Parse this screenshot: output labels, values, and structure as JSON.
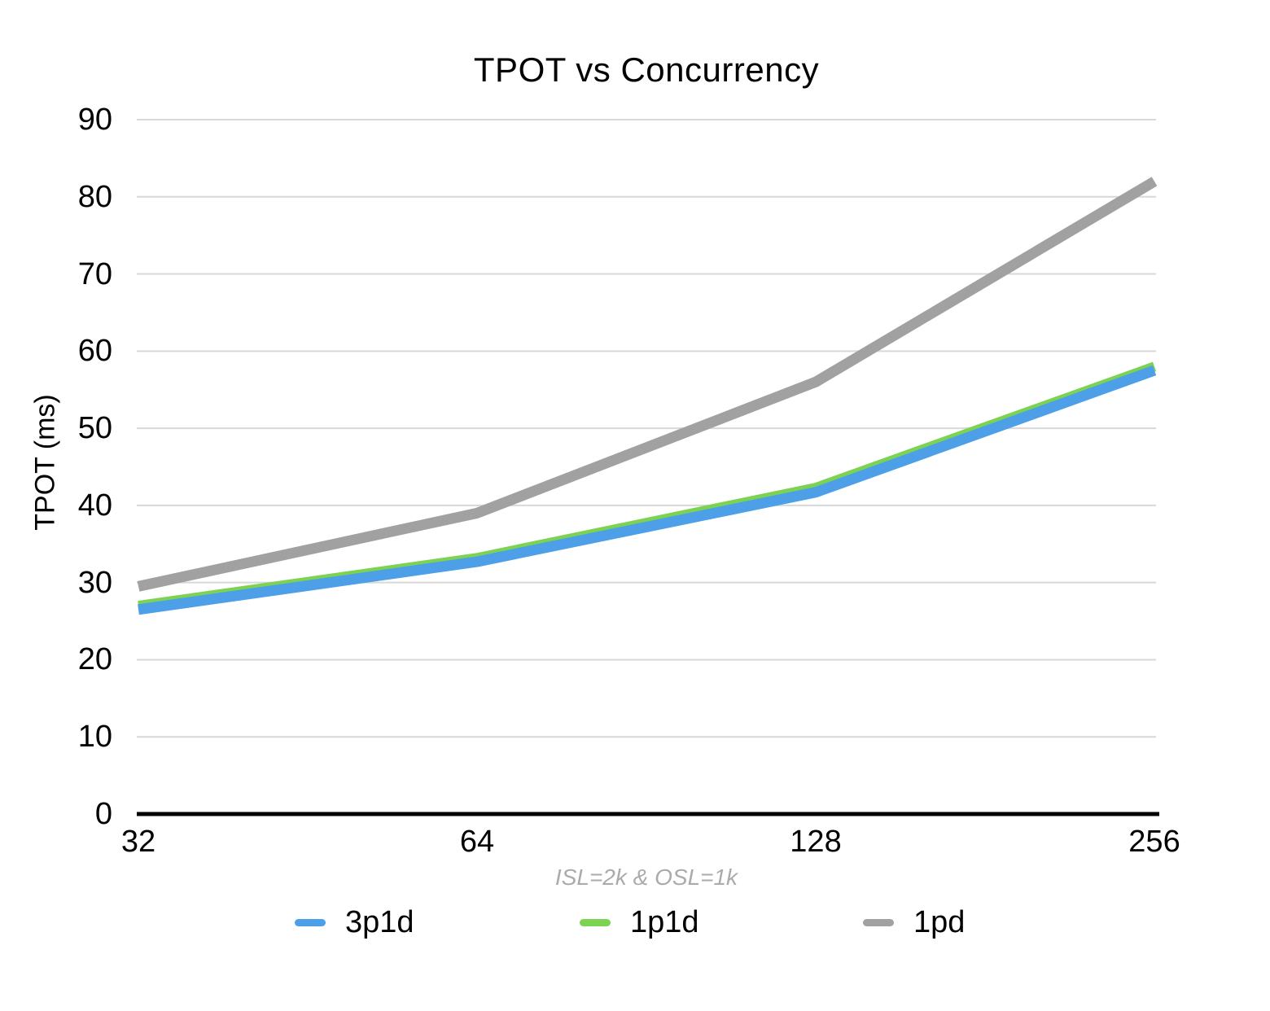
{
  "chart_data": {
    "type": "line",
    "title": "TPOT vs Concurrency",
    "subtitle": "ISL=2k & OSL=1k",
    "ylabel": "TPOT (ms)",
    "xlabel": "",
    "categories": [
      "32",
      "64",
      "128",
      "256"
    ],
    "series": [
      {
        "name": "3p1d",
        "color": "#4DA0E8",
        "values": [
          26.5,
          32.7,
          41.7,
          57.5
        ]
      },
      {
        "name": "1p1d",
        "color": "#7CD251",
        "values": [
          27.0,
          33.2,
          42.3,
          58.0
        ]
      },
      {
        "name": "1pd",
        "color": "#A1A1A1",
        "values": [
          29.5,
          39.0,
          56.0,
          82.0
        ]
      }
    ],
    "ylim": [
      0,
      90
    ],
    "yticks": [
      0,
      10,
      20,
      30,
      40,
      50,
      60,
      70,
      80,
      90
    ],
    "grid": true,
    "legend_position": "bottom",
    "colors": {
      "grid": "#D8D8D8",
      "axis": "#000000",
      "subtitle_text": "#ABABAB",
      "background": "#FFFFFF"
    }
  }
}
